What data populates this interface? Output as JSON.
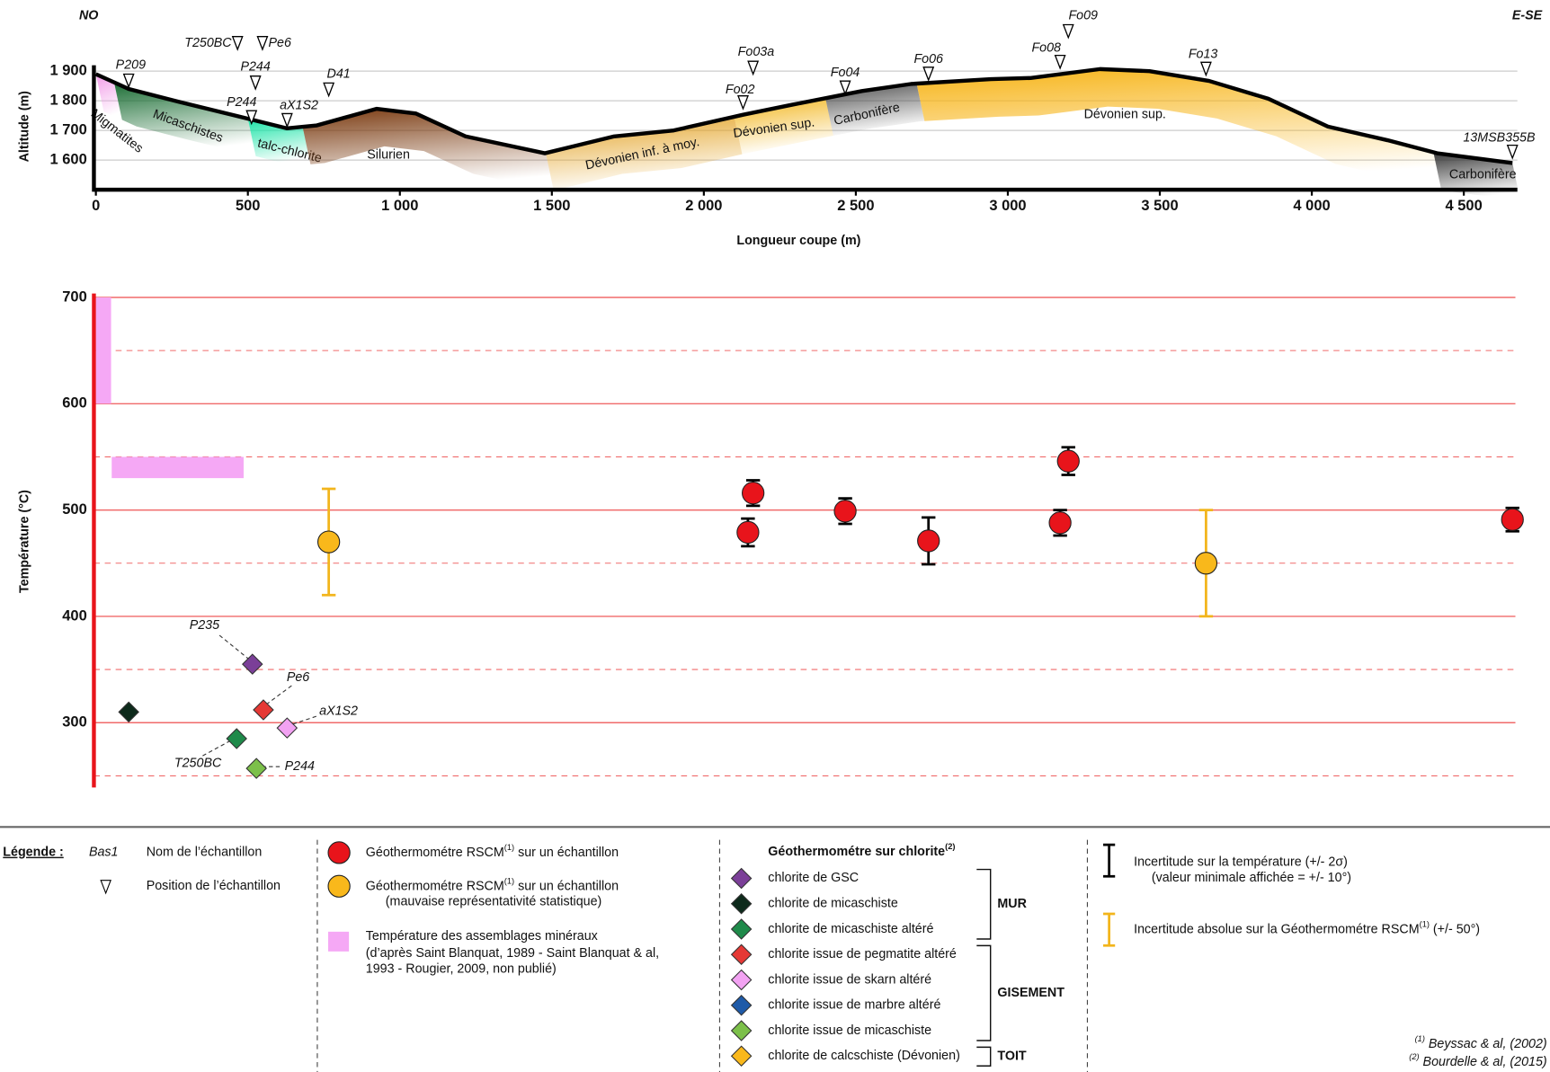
{
  "chart_data": [
    {
      "type": "line",
      "corner_left": "NO",
      "corner_right": "E-SE",
      "ylabel": "Altitude (m)",
      "xlabel": "Longueur coupe (m)",
      "x": [
        0,
        108,
        271,
        499,
        629,
        727,
        923,
        1053,
        1216,
        1477,
        1705,
        1901,
        2129,
        2292,
        2520,
        2683,
        2944,
        3075,
        3303,
        3466,
        3662,
        3857,
        4053,
        4249,
        4412,
        4660
      ],
      "values": [
        1890,
        1840,
        1797,
        1740,
        1707,
        1717,
        1773,
        1757,
        1680,
        1623,
        1680,
        1700,
        1753,
        1787,
        1833,
        1857,
        1873,
        1877,
        1907,
        1900,
        1867,
        1807,
        1713,
        1667,
        1623,
        1590
      ],
      "color": "#000000",
      "xlim": [
        0,
        4660
      ],
      "ylim": [
        1500,
        1920
      ],
      "xticks": [
        0,
        500,
        {
          "value": 1000,
          "label": "1 000"
        },
        {
          "value": 1500,
          "label": "1 500"
        },
        {
          "value": 2000,
          "label": "2 000"
        },
        {
          "value": 2500,
          "label": "2 500"
        },
        {
          "value": 3000,
          "label": "3 000"
        },
        {
          "value": 3500,
          "label": "3 500"
        },
        {
          "value": 4000,
          "label": "4 000"
        },
        {
          "value": 4500,
          "label": "4 500"
        }
      ],
      "yticks": [
        {
          "value": 1600,
          "label": "1 600"
        },
        {
          "value": 1700,
          "label": "1 700"
        },
        {
          "value": 1800,
          "label": "1 800"
        },
        {
          "value": 1900,
          "label": "1 900"
        }
      ],
      "grid": true,
      "formations": [
        {
          "name": "Migmatites",
          "color": "#f29be8",
          "from": 0,
          "to": 60
        },
        {
          "name": "Micaschistes",
          "color": "#1c6e35",
          "from": 60,
          "to": 500
        },
        {
          "name": "talc-chlorite",
          "color": "#19e3a6",
          "from": 500,
          "to": 680
        },
        {
          "name": "Silurien",
          "color": "#7a3a10",
          "from": 680,
          "to": 1480
        },
        {
          "name": "Dévonien inf. à moy.",
          "color": "#e3a224",
          "from": 1480,
          "to": 2100
        },
        {
          "name": "Dévonien sup.",
          "color": "#f2b51c",
          "from": 2100,
          "to": 2400
        },
        {
          "name": "Carbonifère",
          "color": "#4d4d4d",
          "from": 2400,
          "to": 2700
        },
        {
          "name": "Dévonien sup.",
          "color": "#f7b417",
          "from": 2700,
          "to": 4400
        },
        {
          "name": "Carbonifère",
          "color": "#3a3a3a",
          "from": 4400,
          "to": 4660
        }
      ],
      "samples": [
        {
          "name": "P209",
          "x": 108
        },
        {
          "name": "T250BC",
          "x": 466
        },
        {
          "name": "Pe6",
          "x": 548
        },
        {
          "name": "P244",
          "x": 525
        },
        {
          "name": "P244",
          "x": 512
        },
        {
          "name": "aX1S2",
          "x": 629
        },
        {
          "name": "D41",
          "x": 766
        },
        {
          "name": "Fo03a",
          "x": 2162
        },
        {
          "name": "Fo02",
          "x": 2129
        },
        {
          "name": "Fo04",
          "x": 2465
        },
        {
          "name": "Fo06",
          "x": 2739
        },
        {
          "name": "Fo08",
          "x": 3172
        },
        {
          "name": "Fo09",
          "x": 3199
        },
        {
          "name": "Fo13",
          "x": 3652
        },
        {
          "name": "13MSB355B",
          "x": 4660
        }
      ]
    },
    {
      "type": "scatter",
      "ylabel": "Température (°C)",
      "xlim": [
        0,
        4660
      ],
      "ylim": [
        240,
        700
      ],
      "yticks": [
        300,
        400,
        500,
        600,
        700
      ],
      "minor_yticks": [
        250,
        350,
        450,
        550,
        650
      ],
      "grid": true,
      "grid_color": "#f06a6a",
      "axis_color": "#e8141b",
      "assemblages": {
        "name": "Température des assemblages minéraux",
        "note": [
          "(d’après Saint Blanquat, 1989 - Saint Blanquat & al,",
          "1993 - Rougier, 2009, non publié)"
        ],
        "color": "#f5a8f5",
        "ranges": [
          {
            "x": [
              0,
              50
            ],
            "y": [
              600,
              700
            ]
          },
          {
            "x": [
              52,
              486
            ],
            "y": [
              530,
              550
            ]
          }
        ]
      },
      "rscm": [
        {
          "name": "Géothermométre RSCM",
          "sup": "(1)",
          "name_end": " sur un échantillon",
          "color": "#e8141b",
          "error_color": "#000000",
          "x": [
            2145,
            2162,
            2465,
            2739,
            3172,
            3199,
            4660
          ],
          "values": [
            479,
            516,
            499,
            471,
            488,
            546,
            491
          ],
          "errors": [
            13,
            12,
            12,
            22,
            12,
            13,
            11
          ]
        },
        {
          "name": "Géothermométre RSCM",
          "sup": "(1)",
          "name_end": " sur un échantillon",
          "note": "(mauvaise représentativité statistique)",
          "color": "#f9b81b",
          "error_color": "#f2b51c",
          "x": [
            766,
            3652
          ],
          "values": [
            470,
            450
          ],
          "errors": [
            50,
            50
          ]
        }
      ],
      "chlorite_title": "Géothermométre sur chlorite",
      "chlorite_sup": "(2)",
      "groups": [
        {
          "name": "MUR",
          "series": [
            {
              "name": "chlorite de GSC",
              "color": "#7b3f98",
              "x": [
                515
              ],
              "values": [
                355
              ],
              "labels": [
                "P235"
              ]
            },
            {
              "name": "chlorite de micaschiste",
              "color": "#0d2a1b",
              "x": [
                108
              ],
              "values": [
                310
              ],
              "labels": [
                null
              ]
            },
            {
              "name": "chlorite de micaschiste altéré",
              "color": "#1f8a4a",
              "x": [
                463
              ],
              "values": [
                285
              ],
              "labels": [
                "T250BC"
              ]
            }
          ]
        },
        {
          "name": "GISEMENT",
          "series": [
            {
              "name": "chlorite issue de pegmatite altéré",
              "color": "#e53935",
              "x": [
                551
              ],
              "values": [
                312
              ],
              "labels": [
                "Pe6"
              ]
            },
            {
              "name": "chlorite issue de skarn altéré",
              "color": "#f2a2f2",
              "x": [
                629
              ],
              "values": [
                295
              ],
              "labels": [
                "aX1S2"
              ]
            },
            {
              "name": "chlorite issue de marbre altéré",
              "color": "#1e5aa8",
              "x": [],
              "values": [],
              "labels": []
            },
            {
              "name": "chlorite issue de micaschiste",
              "color": "#7cc04a",
              "x": [
                528
              ],
              "values": [
                257
              ],
              "labels": [
                "P244"
              ]
            }
          ]
        },
        {
          "name": "TOIT",
          "series": [
            {
              "name": "chlorite de calcschiste (Dévonien)",
              "color": "#f9b81b",
              "x": [],
              "values": [],
              "labels": []
            }
          ]
        }
      ]
    }
  ],
  "legend": {
    "heading": "Légende :",
    "sample_example": "Bas1",
    "sample_desc": "Nom de l’échantillon",
    "position_desc": "Position de l’échantillon",
    "error_temp": {
      "text": "Incertitude sur la température (+/- 2σ)",
      "note": "(valeur minimale affichée = +/- 10°)",
      "color": "#000000"
    },
    "error_abs": {
      "text": "Incertitude absolue sur la Géothermométre RSCM",
      "sup": "(1)",
      "text_end": " (+/- 50°)",
      "color": "#f2b51c"
    },
    "references": [
      {
        "sup": "(1)",
        "text": " Beyssac & al, (2002)"
      },
      {
        "sup": "(2)",
        "text": " Bourdelle & al, (2015)"
      }
    ]
  }
}
